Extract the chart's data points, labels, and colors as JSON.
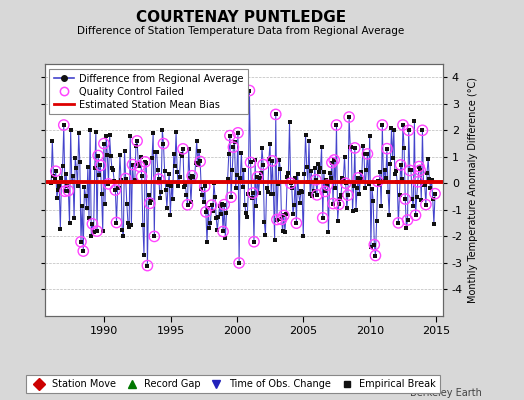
{
  "title": "COURTENAY PUNTLEDGE",
  "subtitle": "Difference of Station Temperature Data from Regional Average",
  "ylabel_right": "Monthly Temperature Anomaly Difference (°C)",
  "watermark": "Berkeley Earth",
  "xlim": [
    1985.5,
    2015.5
  ],
  "ylim": [
    -5,
    4.5
  ],
  "yticks": [
    -4,
    -3,
    -2,
    -1,
    0,
    1,
    2,
    3,
    4
  ],
  "xticks": [
    1990,
    1995,
    2000,
    2005,
    2010,
    2015
  ],
  "bias_value": 0.05,
  "background_color": "#d8d8d8",
  "plot_bg_color": "#ffffff",
  "line_color": "#4444cc",
  "dot_color": "#111111",
  "bias_color": "#dd0000",
  "qc_color": "#ff44ff",
  "seed_data": 7,
  "seed_qc": 22,
  "n_points": 336,
  "start_year": 1986.0,
  "end_year": 2015.0
}
